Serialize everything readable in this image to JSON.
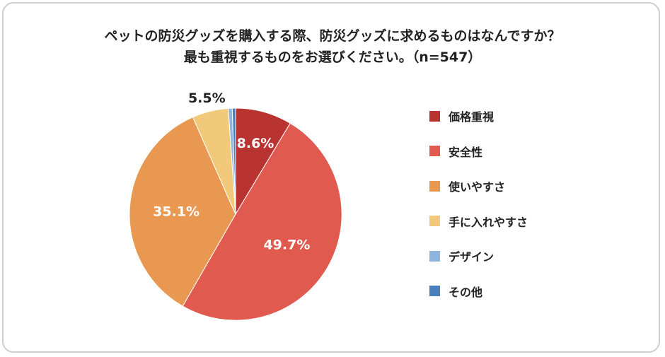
{
  "title_line1": "ペットの防災グッズを購入する際、防災グッズに求めるものはなんですか？",
  "title_line2": "最も重視するものをお選びください。（n=547）",
  "chart_data": {
    "type": "pie",
    "title": "ペットの防災グッズを購入する際、防災グッズに求めるものはなんですか？ 最も重視するものをお選びください。（n=547）",
    "legend_position": "right",
    "slices": [
      {
        "label": "価格重視",
        "value": 8.6,
        "display": "8.6%",
        "color": "#b93331"
      },
      {
        "label": "安全性",
        "value": 49.7,
        "display": "49.7%",
        "color": "#e05a4f"
      },
      {
        "label": "使いやすさ",
        "value": 35.1,
        "display": "35.1%",
        "color": "#e99852"
      },
      {
        "label": "手に入れやすさ",
        "value": 5.5,
        "display": "5.5%",
        "color": "#f2c97a"
      },
      {
        "label": "デザイン",
        "value": 0.6,
        "display": "",
        "color": "#8fb5df"
      },
      {
        "label": "その他",
        "value": 0.5,
        "display": "",
        "color": "#4a7fbd"
      }
    ]
  }
}
